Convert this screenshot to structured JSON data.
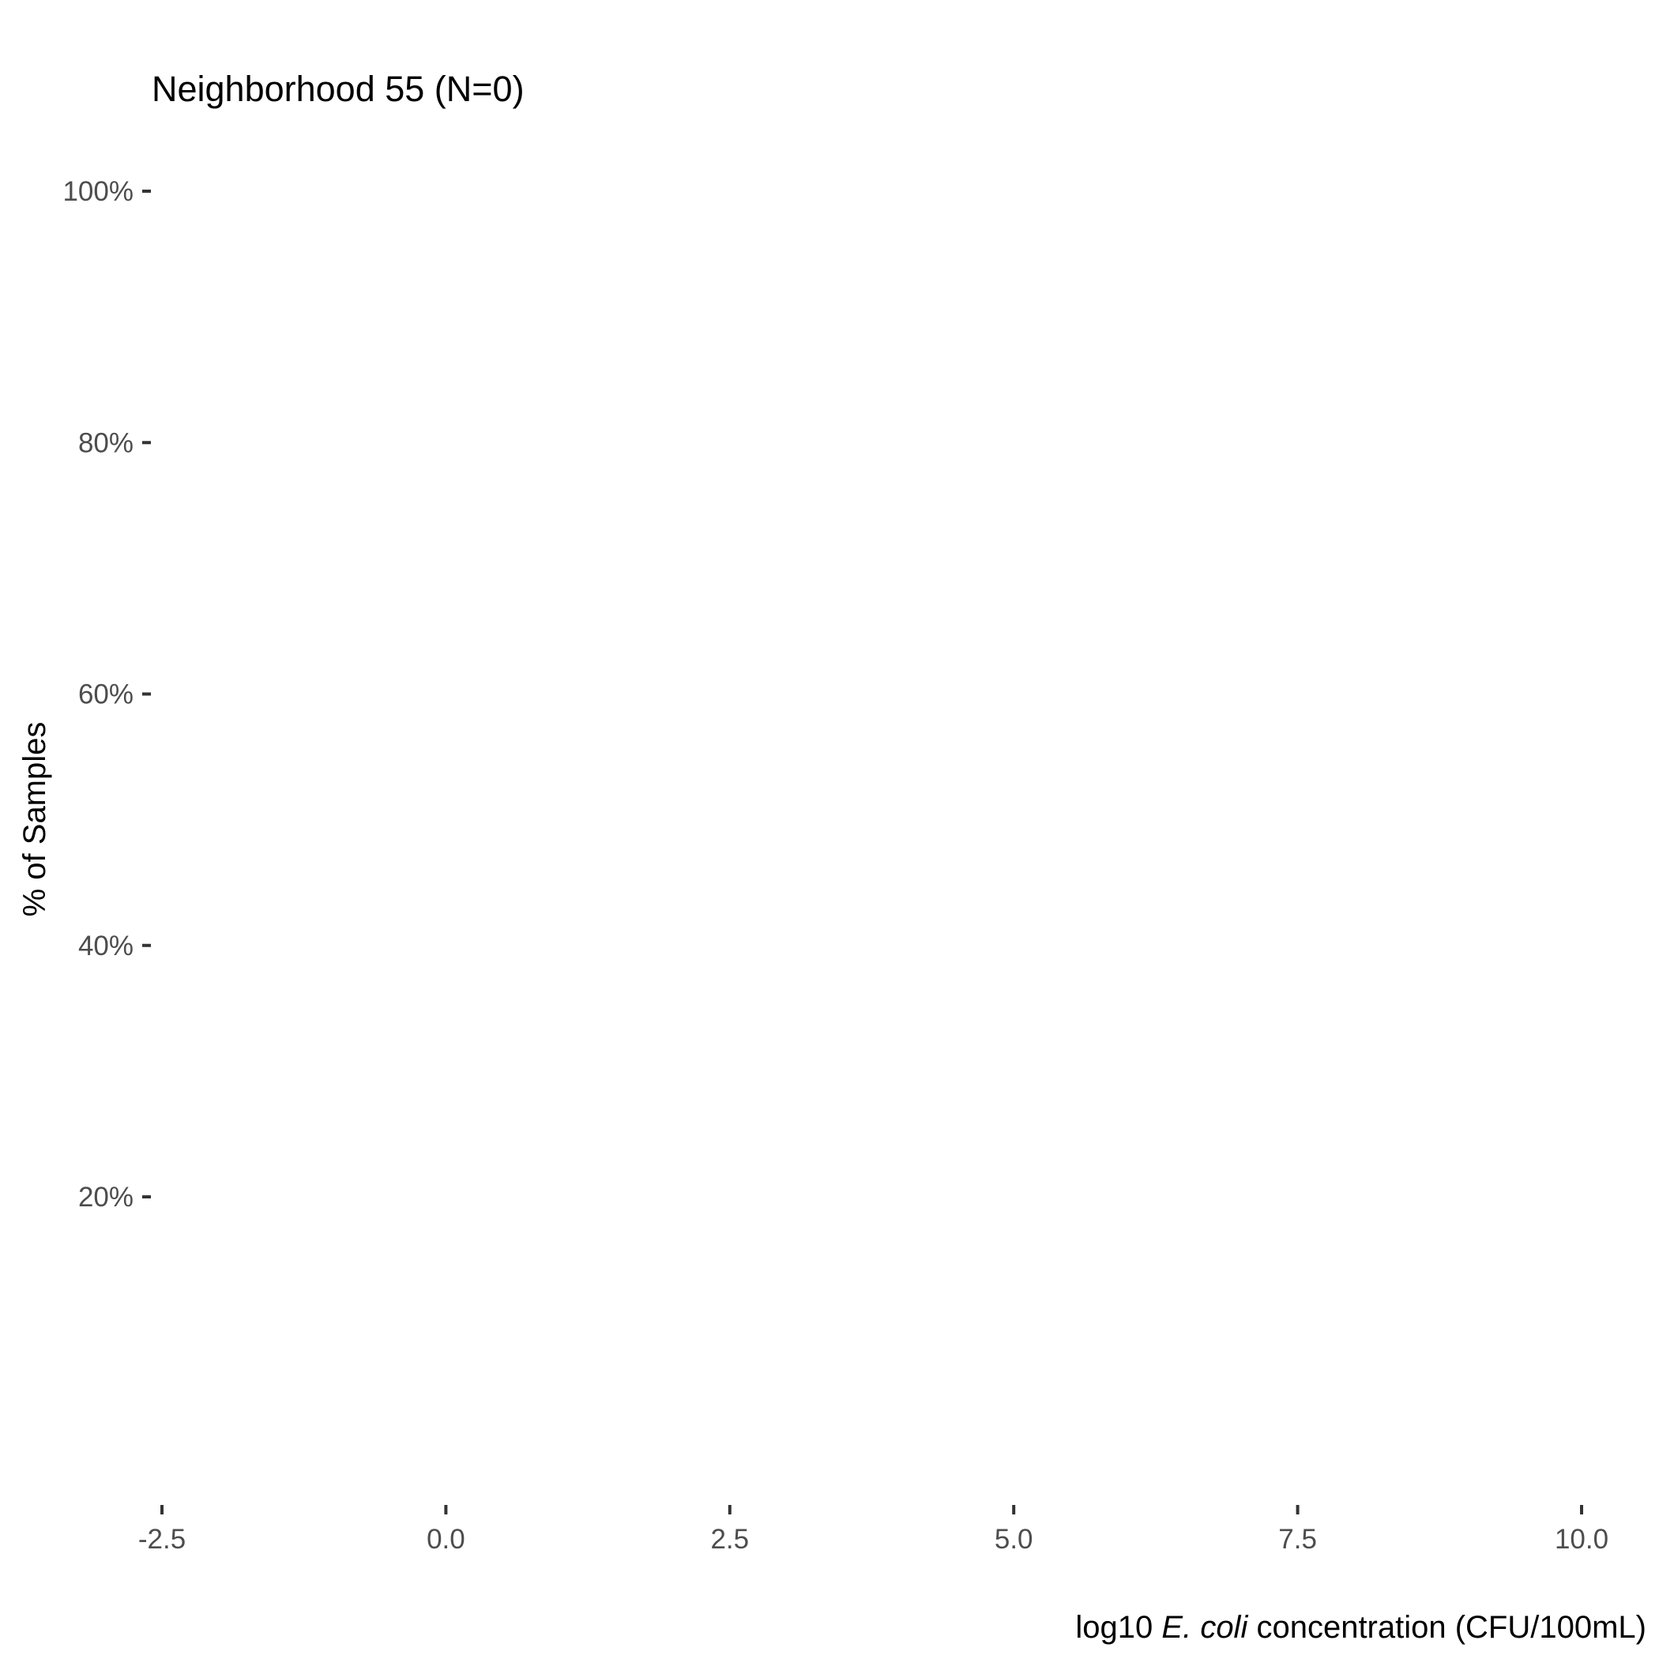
{
  "chart_data": {
    "type": "line",
    "title": "Neighborhood 55 (N=0)",
    "xlabel_parts": [
      {
        "text": "log10 ",
        "italic": false
      },
      {
        "text": "E. coli",
        "italic": true
      },
      {
        "text": " concentration (CFU/100mL)",
        "italic": false
      }
    ],
    "ylabel": "% of Samples",
    "xlim": [
      -2.5,
      10.0
    ],
    "ylim": [
      0,
      1
    ],
    "x_ticks": [
      {
        "value": -2.5,
        "label": "-2.5"
      },
      {
        "value": 0.0,
        "label": "0.0"
      },
      {
        "value": 2.5,
        "label": "2.5"
      },
      {
        "value": 5.0,
        "label": "5.0"
      },
      {
        "value": 7.5,
        "label": "7.5"
      },
      {
        "value": 10.0,
        "label": "10.0"
      }
    ],
    "y_ticks": [
      {
        "value": 0.2,
        "label": "20%"
      },
      {
        "value": 0.4,
        "label": "40%"
      },
      {
        "value": 0.6,
        "label": "60%"
      },
      {
        "value": 0.8,
        "label": "80%"
      },
      {
        "value": 1.0,
        "label": "100%"
      }
    ],
    "grid": false,
    "series": []
  }
}
